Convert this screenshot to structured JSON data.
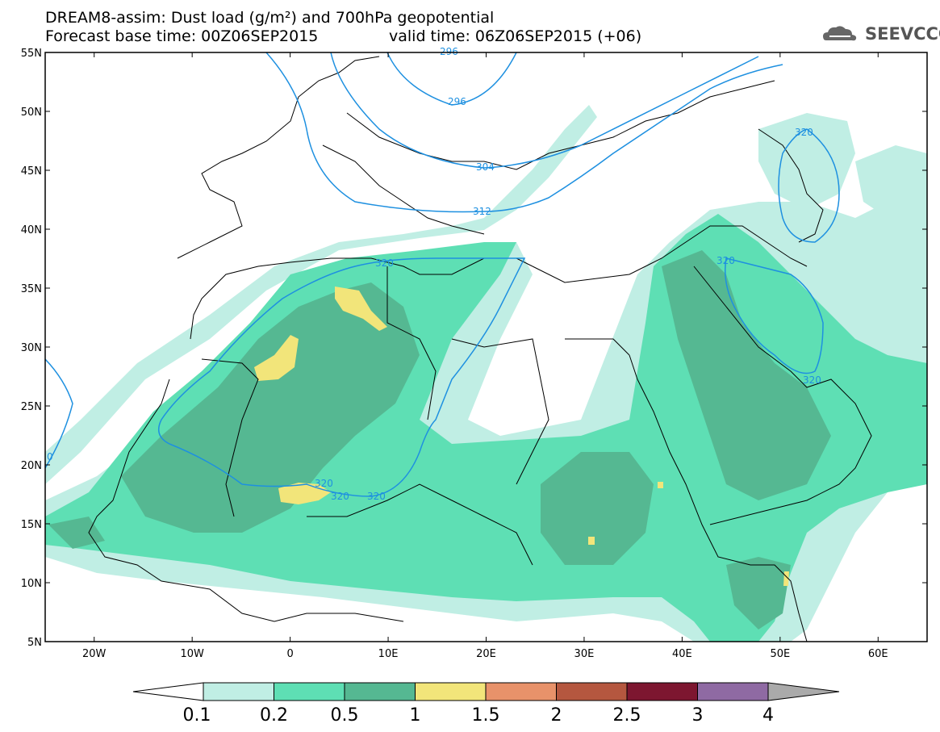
{
  "header": {
    "title_line1": "DREAM8-assim: Dust load (g/m²) and 700hPa geopotential",
    "title_line2": "Forecast base time: 00Z06SEP2015",
    "valid_time": "valid time: 06Z06SEP2015 (+06)",
    "logo_text": "SEEVCCC"
  },
  "axes": {
    "lat_labels": [
      "55N",
      "50N",
      "45N",
      "40N",
      "35N",
      "30N",
      "25N",
      "20N",
      "15N",
      "10N",
      "5N"
    ],
    "lon_labels": [
      "20W",
      "10W",
      "0",
      "10E",
      "20E",
      "30E",
      "40E",
      "50E",
      "60E"
    ],
    "lon_values": [
      -20,
      -10,
      0,
      10,
      20,
      30,
      40,
      50,
      60
    ],
    "lat_values": [
      55,
      50,
      45,
      40,
      35,
      30,
      25,
      20,
      15,
      10,
      5
    ],
    "lon_range": [
      -25,
      65
    ],
    "lat_range": [
      5,
      55
    ]
  },
  "colorbar": {
    "labels": [
      "0.1",
      "0.2",
      "0.5",
      "1",
      "1.5",
      "2",
      "2.5",
      "3",
      "4"
    ],
    "colors": [
      "#c0eee4",
      "#5edfb4",
      "#55b892",
      "#f2e57a",
      "#e8926a",
      "#b5573f",
      "#7d1630",
      "#8f6aa3"
    ],
    "under_color": "#ffffff",
    "over_color": "#aaaaaa"
  },
  "contour_labels": [
    "296",
    "304",
    "312",
    "320",
    "320",
    "320",
    "320",
    "320",
    "320",
    "320",
    "296",
    "0"
  ],
  "colors": {
    "dust_low": "#c0eee4",
    "dust_mid": "#5edfb4",
    "dust_high": "#55b892",
    "dust_peak": "#f2e57a",
    "contour": "#1e90e0",
    "coast": "#000000"
  }
}
